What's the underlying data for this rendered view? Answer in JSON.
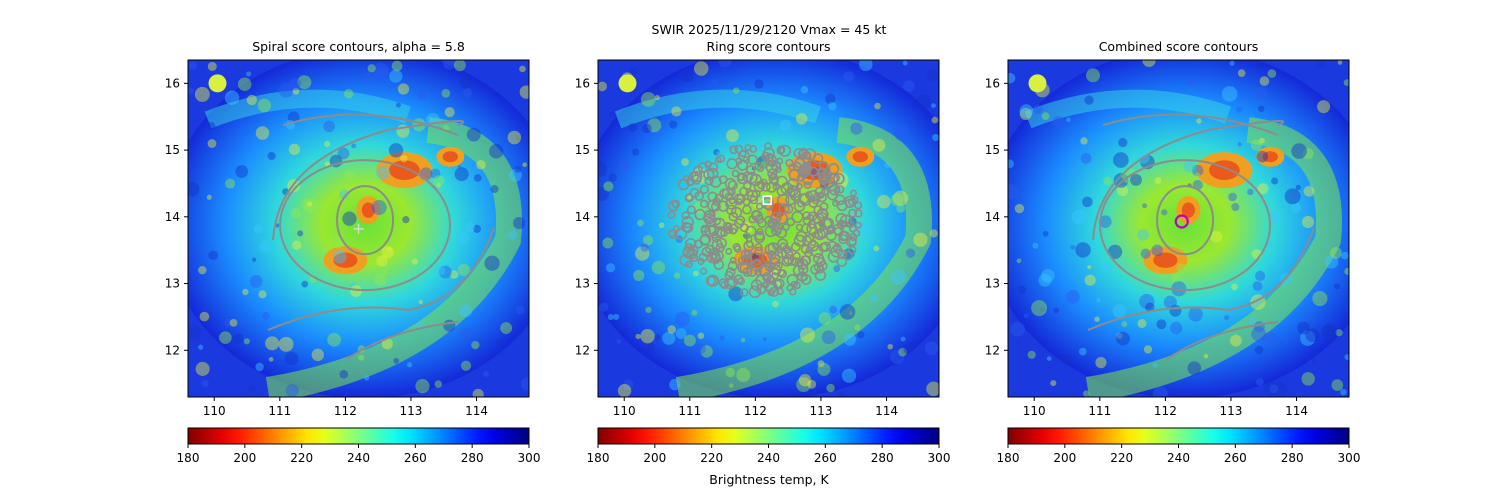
{
  "suptitle": "SWIR  2025/11/29/2120    Vmax = 45 kt",
  "colorbar_label": "Brightness temp, K",
  "chart_data": [
    {
      "type": "heatmap",
      "title": "Spiral score contours, alpha =  5.8",
      "xlim": [
        109.6,
        114.8
      ],
      "ylim": [
        11.3,
        16.35
      ],
      "xticks": [
        110,
        111,
        112,
        113,
        114
      ],
      "yticks": [
        12,
        13,
        14,
        15,
        16
      ],
      "colorbar": {
        "cmap": "jet_r",
        "range": [
          180,
          300
        ],
        "ticks": [
          180,
          200,
          220,
          240,
          260,
          280,
          300
        ]
      },
      "center_marker": {
        "type": "plus",
        "lon": 112.2,
        "lat": 13.82,
        "color": "#d8d8d8"
      },
      "contour_color": "#8c8c8c"
    },
    {
      "type": "heatmap",
      "title": "Ring score contours",
      "xlim": [
        109.6,
        114.8
      ],
      "ylim": [
        11.3,
        16.35
      ],
      "xticks": [
        110,
        111,
        112,
        113,
        114
      ],
      "yticks": [
        12,
        13,
        14,
        15,
        16
      ],
      "colorbar": {
        "cmap": "jet_r",
        "range": [
          180,
          300
        ],
        "ticks": [
          180,
          200,
          220,
          240,
          260,
          280,
          300
        ]
      },
      "center_marker": {
        "type": "square",
        "lon": 112.18,
        "lat": 14.25,
        "color": "#ffffff"
      },
      "contour_color": "#8c8c8c"
    },
    {
      "type": "heatmap",
      "title": "Combined score contours",
      "xlim": [
        109.6,
        114.8
      ],
      "ylim": [
        11.3,
        16.35
      ],
      "xticks": [
        110,
        111,
        112,
        113,
        114
      ],
      "yticks": [
        12,
        13,
        14,
        15,
        16
      ],
      "colorbar": {
        "cmap": "jet_r",
        "range": [
          180,
          300
        ],
        "ticks": [
          180,
          200,
          220,
          240,
          260,
          280,
          300
        ]
      },
      "center_marker": {
        "type": "circle",
        "lon": 112.25,
        "lat": 13.93,
        "color": "#c000c0"
      },
      "contour_color": "#8c8c8c"
    }
  ]
}
